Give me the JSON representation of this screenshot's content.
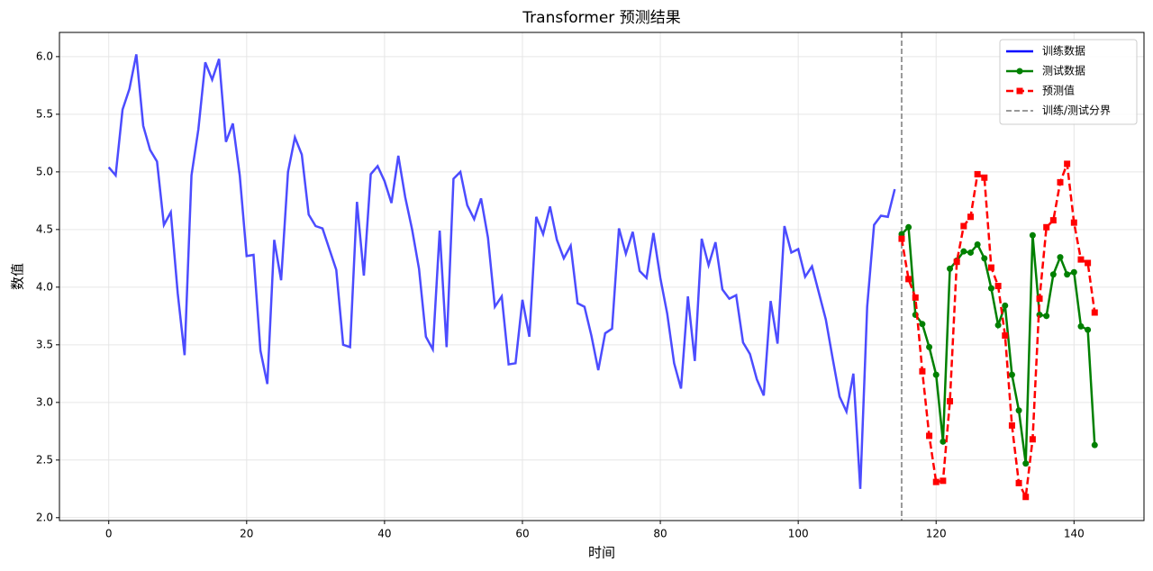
{
  "chart_data": {
    "type": "line",
    "title": "Transformer 预测结果",
    "xlabel": "时间",
    "ylabel": "数值",
    "xlim": [
      -7.15,
      150.15
    ],
    "ylim": [
      1.975,
      6.21
    ],
    "xticks": [
      0,
      20,
      40,
      60,
      80,
      100,
      120,
      140
    ],
    "yticks": [
      {
        "value": 2,
        "label": "2.0"
      },
      2.5,
      {
        "value": 3,
        "label": "3.0"
      },
      3.5,
      {
        "value": 4,
        "label": "4.0"
      },
      4.5,
      {
        "value": 5,
        "label": "5.0"
      },
      5.5,
      {
        "value": 6,
        "label": "6.0"
      }
    ],
    "grid": true,
    "legend": "upper right",
    "series": [
      {
        "name": "训练数据",
        "color": "#0000ff",
        "marker": "none",
        "dash": "solid",
        "x": [
          0,
          1,
          2,
          3,
          4,
          5,
          6,
          7,
          8,
          9,
          10,
          11,
          12,
          13,
          14,
          15,
          16,
          17,
          18,
          19,
          20,
          21,
          22,
          23,
          24,
          25,
          26,
          27,
          28,
          29,
          30,
          31,
          32,
          33,
          34,
          35,
          36,
          37,
          38,
          39,
          40,
          41,
          42,
          43,
          44,
          45,
          46,
          47,
          48,
          49,
          50,
          51,
          52,
          53,
          54,
          55,
          56,
          57,
          58,
          59,
          60,
          61,
          62,
          63,
          64,
          65,
          66,
          67,
          68,
          69,
          70,
          71,
          72,
          73,
          74,
          75,
          76,
          77,
          78,
          79,
          80,
          81,
          82,
          83,
          84,
          85,
          86,
          87,
          88,
          89,
          90,
          91,
          92,
          93,
          94,
          95,
          96,
          97,
          98,
          99,
          100,
          101,
          102,
          103,
          104,
          105,
          106,
          107,
          108,
          109,
          110,
          111,
          112,
          113,
          114
        ],
        "values": [
          5.04,
          4.97,
          5.54,
          5.72,
          6.02,
          5.4,
          5.19,
          5.09,
          4.54,
          4.65,
          3.95,
          3.41,
          4.97,
          5.37,
          5.95,
          5.8,
          5.98,
          5.26,
          5.42,
          4.97,
          4.27,
          4.28,
          3.45,
          3.16,
          4.41,
          4.06,
          5.0,
          5.3,
          5.15,
          4.63,
          4.53,
          4.51,
          4.33,
          4.15,
          3.5,
          3.48,
          4.74,
          4.1,
          4.98,
          5.05,
          4.92,
          4.73,
          5.14,
          4.78,
          4.5,
          4.16,
          3.57,
          3.46,
          4.49,
          3.48,
          4.94,
          5.0,
          4.71,
          4.59,
          4.77,
          4.43,
          3.83,
          3.92,
          3.33,
          3.34,
          3.89,
          3.57,
          4.61,
          4.46,
          4.7,
          4.41,
          4.25,
          4.36,
          3.86,
          3.83,
          3.58,
          3.28,
          3.6,
          3.64,
          4.51,
          4.29,
          4.48,
          4.14,
          4.08,
          4.47,
          4.08,
          3.77,
          3.34,
          3.12,
          3.92,
          3.36,
          4.42,
          4.19,
          4.39,
          3.98,
          3.9,
          3.93,
          3.52,
          3.42,
          3.2,
          3.06,
          3.88,
          3.51,
          4.53,
          4.3,
          4.33,
          4.09,
          4.18,
          3.95,
          3.72,
          3.38,
          3.05,
          2.92,
          3.25,
          2.25,
          3.83,
          4.54,
          4.62,
          4.61,
          4.85
        ]
      },
      {
        "name": "测试数据",
        "color": "#008000",
        "marker": "circle",
        "dash": "solid",
        "x": [
          115,
          116,
          117,
          118,
          119,
          120,
          121,
          122,
          123,
          124,
          125,
          126,
          127,
          128,
          129,
          130,
          131,
          132,
          133,
          134,
          135,
          136,
          137,
          138,
          139,
          140,
          141,
          142,
          143
        ],
        "values": [
          4.46,
          4.52,
          3.76,
          3.68,
          3.48,
          3.24,
          2.66,
          4.16,
          4.23,
          4.31,
          4.3,
          4.37,
          4.25,
          3.99,
          3.67,
          3.84,
          3.24,
          2.93,
          2.47,
          4.45,
          3.76,
          3.75,
          4.11,
          4.26,
          4.11,
          4.13,
          3.66,
          3.63,
          2.63
        ]
      },
      {
        "name": "预测值",
        "color": "#ff0000",
        "marker": "square",
        "dash": "dashed",
        "x": [
          115,
          116,
          117,
          118,
          119,
          120,
          121,
          122,
          123,
          124,
          125,
          126,
          127,
          128,
          129,
          130,
          131,
          132,
          133,
          134,
          135,
          136,
          137,
          138,
          139,
          140,
          141,
          142,
          143
        ],
        "values": [
          4.42,
          4.07,
          3.91,
          3.27,
          2.71,
          2.31,
          2.32,
          3.01,
          4.22,
          4.53,
          4.61,
          4.98,
          4.95,
          4.17,
          4.01,
          3.58,
          2.8,
          2.3,
          2.18,
          2.68,
          3.9,
          4.52,
          4.58,
          4.91,
          5.07,
          4.56,
          4.24,
          4.21,
          3.78
        ]
      }
    ],
    "vline": {
      "name": "训练/测试分界",
      "x": 115,
      "color": "#999999"
    }
  }
}
